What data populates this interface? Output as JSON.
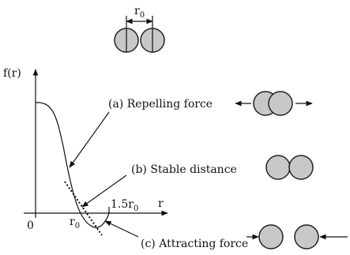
{
  "top_label": {
    "base": "r",
    "sub": "0"
  },
  "axis": {
    "y_label": "f(r)",
    "x_label": "r",
    "origin": "0",
    "r0_label": {
      "base": "r",
      "sub": "0"
    },
    "r15_label": {
      "base": "1.5r",
      "sub": "0"
    }
  },
  "annotations": [
    {
      "label": "(a) Repelling force"
    },
    {
      "label": "(b) Stable distance"
    },
    {
      "label": "(c) Attracting force"
    }
  ]
}
